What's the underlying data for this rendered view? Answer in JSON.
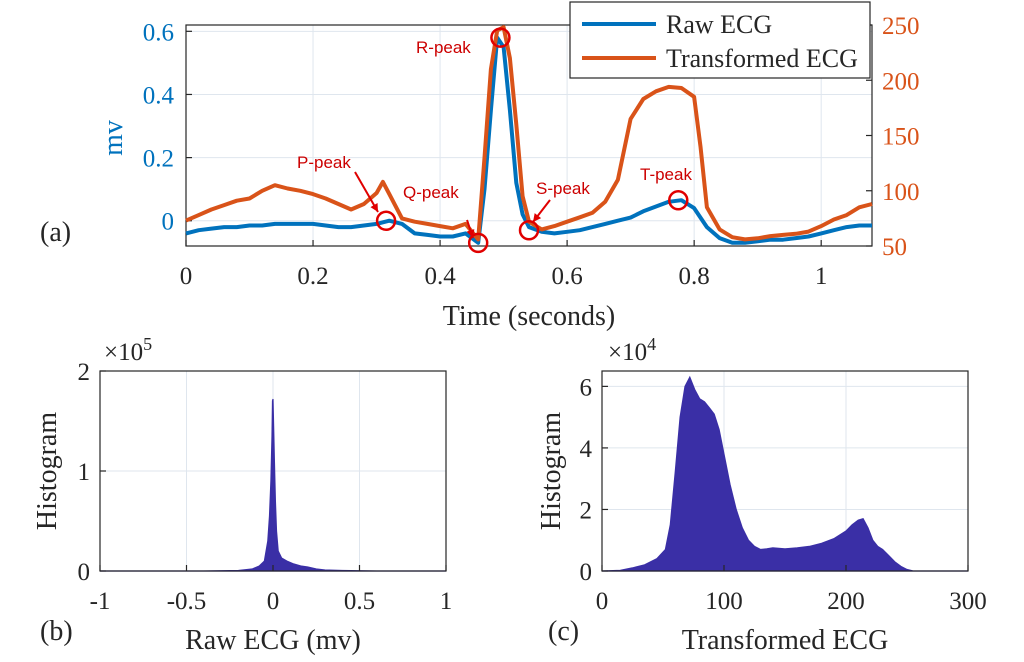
{
  "chart_data": [
    {
      "panel_label": "(a)",
      "type": "line",
      "xlabel": "Time (seconds)",
      "ylabel_left": "mv",
      "ylabel_right": "",
      "xlim": [
        0,
        1.08
      ],
      "ylim_left": [
        -0.08,
        0.62
      ],
      "ylim_right": [
        50,
        250
      ],
      "xticks": [
        0,
        0.2,
        0.4,
        0.6,
        0.8,
        1
      ],
      "xtick_labels": [
        "0",
        "0.2",
        "0.4",
        "0.6",
        "0.8",
        "1"
      ],
      "yticks_left": [
        0,
        0.2,
        0.4,
        0.6
      ],
      "ytick_labels_left": [
        "0",
        "0.2",
        "0.4",
        "0.6"
      ],
      "yticks_right": [
        50,
        100,
        150,
        200,
        250
      ],
      "ytick_labels_right": [
        "50",
        "100",
        "150",
        "200",
        "250"
      ],
      "grid": true,
      "legend_position": "top-right",
      "series": [
        {
          "name": "Raw ECG",
          "color": "#0072BD",
          "axis": "left",
          "x": [
            0,
            0.02,
            0.04,
            0.06,
            0.08,
            0.1,
            0.12,
            0.14,
            0.16,
            0.18,
            0.2,
            0.22,
            0.24,
            0.26,
            0.28,
            0.3,
            0.32,
            0.34,
            0.36,
            0.38,
            0.4,
            0.42,
            0.44,
            0.46,
            0.47,
            0.48,
            0.49,
            0.5,
            0.51,
            0.52,
            0.53,
            0.54,
            0.56,
            0.58,
            0.6,
            0.62,
            0.64,
            0.66,
            0.68,
            0.7,
            0.72,
            0.74,
            0.76,
            0.78,
            0.8,
            0.82,
            0.84,
            0.86,
            0.88,
            0.9,
            0.92,
            0.94,
            0.96,
            0.98,
            1.0,
            1.02,
            1.04,
            1.06,
            1.08
          ],
          "y": [
            -0.04,
            -0.03,
            -0.025,
            -0.02,
            -0.02,
            -0.015,
            -0.015,
            -0.01,
            -0.01,
            -0.01,
            -0.01,
            -0.015,
            -0.02,
            -0.02,
            -0.015,
            -0.01,
            0.0,
            -0.01,
            -0.04,
            -0.045,
            -0.05,
            -0.05,
            -0.04,
            -0.07,
            0.1,
            0.35,
            0.58,
            0.55,
            0.35,
            0.12,
            0.02,
            -0.02,
            -0.035,
            -0.04,
            -0.035,
            -0.03,
            -0.02,
            -0.01,
            0.0,
            0.01,
            0.03,
            0.045,
            0.06,
            0.065,
            0.04,
            -0.02,
            -0.055,
            -0.07,
            -0.07,
            -0.065,
            -0.06,
            -0.06,
            -0.055,
            -0.05,
            -0.04,
            -0.03,
            -0.02,
            -0.015,
            -0.015
          ]
        },
        {
          "name": "Transformed ECG",
          "color": "#D95319",
          "axis": "right",
          "x": [
            0,
            0.02,
            0.04,
            0.06,
            0.08,
            0.1,
            0.12,
            0.14,
            0.16,
            0.18,
            0.2,
            0.22,
            0.24,
            0.26,
            0.28,
            0.3,
            0.31,
            0.32,
            0.34,
            0.36,
            0.38,
            0.4,
            0.42,
            0.44,
            0.46,
            0.47,
            0.48,
            0.49,
            0.5,
            0.51,
            0.52,
            0.53,
            0.54,
            0.56,
            0.58,
            0.6,
            0.62,
            0.64,
            0.66,
            0.68,
            0.7,
            0.72,
            0.74,
            0.76,
            0.78,
            0.8,
            0.81,
            0.82,
            0.84,
            0.86,
            0.88,
            0.9,
            0.92,
            0.94,
            0.96,
            0.98,
            1.0,
            1.02,
            1.04,
            1.06,
            1.08
          ],
          "y": [
            73,
            78,
            83,
            87,
            91,
            93,
            100,
            105,
            102,
            100,
            97,
            93,
            88,
            83,
            88,
            98,
            108,
            97,
            75,
            72,
            70,
            68,
            66,
            70,
            56,
            130,
            210,
            245,
            248,
            220,
            160,
            95,
            72,
            65,
            68,
            72,
            76,
            80,
            90,
            110,
            165,
            183,
            190,
            194,
            193,
            185,
            140,
            85,
            65,
            58,
            56,
            57,
            59,
            60,
            61,
            63,
            68,
            74,
            78,
            85,
            88
          ]
        }
      ],
      "annotations": [
        {
          "label": "P-peak",
          "x": 0.315,
          "y_left": 0.0
        },
        {
          "label": "Q-peak",
          "x": 0.46,
          "y_left": -0.07
        },
        {
          "label": "R-peak",
          "x": 0.495,
          "y_left": 0.58
        },
        {
          "label": "S-peak",
          "x": 0.54,
          "y_left": -0.03
        },
        {
          "label": "T-peak",
          "x": 0.775,
          "y_left": 0.065
        }
      ]
    },
    {
      "panel_label": "(b)",
      "type": "area",
      "xlabel": "Raw ECG (mv)",
      "ylabel": "Histogram",
      "scale_label": "×10",
      "scale_exponent": "5",
      "xlim": [
        -1,
        1
      ],
      "ylim": [
        0,
        2
      ],
      "xticks": [
        -1,
        -0.5,
        0,
        0.5,
        1
      ],
      "xtick_labels": [
        "-1",
        "-0.5",
        "0",
        "0.5",
        "1"
      ],
      "yticks": [
        0,
        1,
        2
      ],
      "ytick_labels": [
        "0",
        "1",
        "2"
      ],
      "grid": true,
      "color": "#3a2fa6",
      "x": [
        -1,
        -0.4,
        -0.2,
        -0.12,
        -0.08,
        -0.05,
        -0.03,
        -0.02,
        -0.012,
        -0.006,
        -0.003,
        0.0,
        0.003,
        0.008,
        0.014,
        0.02,
        0.03,
        0.05,
        0.08,
        0.12,
        0.16,
        0.2,
        0.25,
        0.3,
        0.4,
        0.6,
        1
      ],
      "y": [
        0.0,
        0.0,
        0.005,
        0.02,
        0.05,
        0.1,
        0.3,
        0.55,
        0.9,
        1.35,
        1.7,
        1.72,
        1.5,
        1.1,
        0.7,
        0.4,
        0.2,
        0.13,
        0.1,
        0.07,
        0.05,
        0.04,
        0.02,
        0.01,
        0.005,
        0.0,
        0.0
      ]
    },
    {
      "panel_label": "(c)",
      "type": "area",
      "xlabel": "Transformed ECG",
      "ylabel": "Histogram",
      "scale_label": "×10",
      "scale_exponent": "4",
      "xlim": [
        0,
        300
      ],
      "ylim": [
        0,
        6.5
      ],
      "xticks": [
        0,
        100,
        200,
        300
      ],
      "xtick_labels": [
        "0",
        "100",
        "200",
        "300"
      ],
      "yticks": [
        0,
        2,
        4,
        6
      ],
      "ytick_labels": [
        "0",
        "2",
        "4",
        "6"
      ],
      "grid": true,
      "color": "#3a2fa6",
      "x": [
        0,
        15,
        25,
        35,
        45,
        52,
        56,
        60,
        64,
        68,
        72,
        76,
        80,
        84,
        88,
        92,
        96,
        100,
        105,
        110,
        115,
        120,
        125,
        130,
        135,
        140,
        150,
        160,
        170,
        180,
        190,
        200,
        205,
        210,
        214,
        218,
        222,
        226,
        230,
        235,
        240,
        245,
        250,
        255,
        300
      ],
      "y": [
        0,
        0.02,
        0.1,
        0.2,
        0.4,
        0.7,
        1.5,
        3.2,
        5.0,
        6.0,
        6.3,
        5.9,
        5.6,
        5.5,
        5.3,
        5.1,
        4.6,
        3.8,
        2.8,
        2.0,
        1.4,
        1.0,
        0.8,
        0.7,
        0.72,
        0.75,
        0.72,
        0.75,
        0.8,
        0.9,
        1.05,
        1.3,
        1.5,
        1.65,
        1.7,
        1.4,
        1.0,
        0.8,
        0.7,
        0.5,
        0.3,
        0.15,
        0.05,
        0.0,
        0
      ]
    }
  ]
}
